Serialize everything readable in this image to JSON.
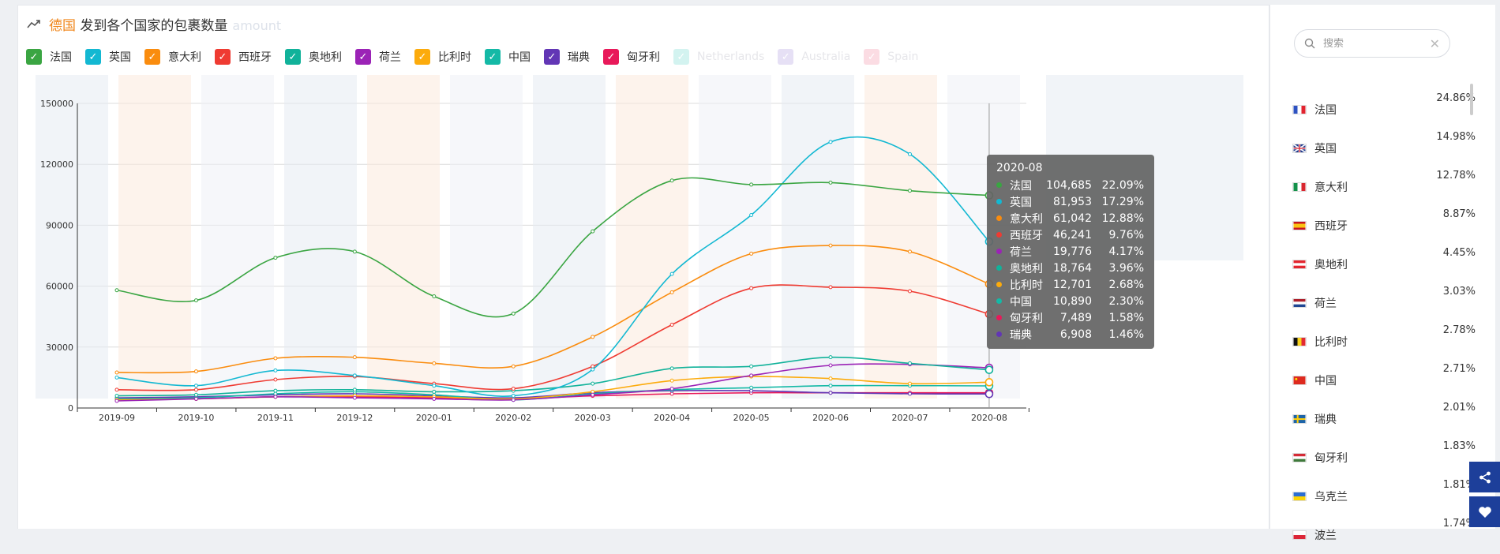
{
  "header": {
    "title_prefix": "德国",
    "title_main": "发到各个国家的包裹数量",
    "title_ghost": "amount"
  },
  "legend": [
    {
      "name": "法国",
      "color": "#3aa542",
      "on": true
    },
    {
      "name": "英国",
      "color": "#13b8d2",
      "on": true
    },
    {
      "name": "意大利",
      "color": "#fa8c0e",
      "on": true
    },
    {
      "name": "西班牙",
      "color": "#ef3b32",
      "on": true
    },
    {
      "name": "奥地利",
      "color": "#11b29a",
      "on": true
    },
    {
      "name": "荷兰",
      "color": "#9b23b6",
      "on": true
    },
    {
      "name": "比利时",
      "color": "#fcab0c",
      "on": true
    },
    {
      "name": "中国",
      "color": "#14b9a6",
      "on": true
    },
    {
      "name": "瑞典",
      "color": "#6236b5",
      "on": true
    },
    {
      "name": "匈牙利",
      "color": "#e8195a",
      "on": true
    },
    {
      "name": "Netherlands",
      "color": "#d3f3f0",
      "on": false
    },
    {
      "name": "Australia",
      "color": "#e6e0f5",
      "on": false
    },
    {
      "name": "Spain",
      "color": "#fbdce3",
      "on": false
    }
  ],
  "tooltip": {
    "date": "2020-08",
    "rows": [
      {
        "name": "法国",
        "value": "104,685",
        "pct": "22.09%",
        "color": "#3aa542"
      },
      {
        "name": "英国",
        "value": "81,953",
        "pct": "17.29%",
        "color": "#13b8d2"
      },
      {
        "name": "意大利",
        "value": "61,042",
        "pct": "12.88%",
        "color": "#fa8c0e"
      },
      {
        "name": "西班牙",
        "value": "46,241",
        "pct": "9.76%",
        "color": "#ef3b32"
      },
      {
        "name": "荷兰",
        "value": "19,776",
        "pct": "4.17%",
        "color": "#9b23b6"
      },
      {
        "name": "奥地利",
        "value": "18,764",
        "pct": "3.96%",
        "color": "#11b29a"
      },
      {
        "name": "比利时",
        "value": "12,701",
        "pct": "2.68%",
        "color": "#fcab0c"
      },
      {
        "name": "中国",
        "value": "10,890",
        "pct": "2.30%",
        "color": "#14b9a6"
      },
      {
        "name": "匈牙利",
        "value": "7,489",
        "pct": "1.58%",
        "color": "#e8195a"
      },
      {
        "name": "瑞典",
        "value": "6,908",
        "pct": "1.46%",
        "color": "#6236b5"
      }
    ]
  },
  "side": {
    "search_placeholder": "搜索",
    "countries": [
      {
        "name": "法国",
        "pct": "24.86%",
        "flag": "fr"
      },
      {
        "name": "英国",
        "pct": "14.98%",
        "flag": "gb"
      },
      {
        "name": "意大利",
        "pct": "12.78%",
        "flag": "it"
      },
      {
        "name": "西班牙",
        "pct": "8.87%",
        "flag": "es"
      },
      {
        "name": "奥地利",
        "pct": "4.45%",
        "flag": "at"
      },
      {
        "name": "荷兰",
        "pct": "3.03%",
        "flag": "nl"
      },
      {
        "name": "比利时",
        "pct": "2.78%",
        "flag": "be"
      },
      {
        "name": "中国",
        "pct": "2.71%",
        "flag": "cn"
      },
      {
        "name": "瑞典",
        "pct": "2.01%",
        "flag": "se"
      },
      {
        "name": "匈牙利",
        "pct": "1.83%",
        "flag": "hu"
      },
      {
        "name": "乌克兰",
        "pct": "1.81%",
        "flag": "ua"
      },
      {
        "name": "波兰",
        "pct": "1.74%",
        "flag": "pl"
      }
    ]
  },
  "chart_data": {
    "type": "line",
    "x": [
      "2019-09",
      "2019-10",
      "2019-11",
      "2019-12",
      "2020-01",
      "2020-02",
      "2020-03",
      "2020-04",
      "2020-05",
      "2020-06",
      "2020-07",
      "2020-08"
    ],
    "ylim": [
      0,
      150000
    ],
    "yticks": [
      0,
      30000,
      60000,
      90000,
      120000,
      150000
    ],
    "grid": true,
    "series": [
      {
        "name": "法国",
        "color": "#3aa542",
        "values": [
          58000,
          53000,
          74000,
          77000,
          55000,
          46500,
          87000,
          112000,
          110000,
          111000,
          107000,
          104685
        ]
      },
      {
        "name": "英国",
        "color": "#13b8d2",
        "values": [
          15000,
          11000,
          18500,
          16000,
          11000,
          6000,
          19000,
          66000,
          95000,
          131000,
          125000,
          81953
        ]
      },
      {
        "name": "意大利",
        "color": "#fa8c0e",
        "values": [
          17500,
          18000,
          24500,
          25000,
          22000,
          20500,
          35000,
          57000,
          76000,
          80000,
          77000,
          61042
        ]
      },
      {
        "name": "西班牙",
        "color": "#ef3b32",
        "values": [
          9000,
          9000,
          14000,
          15500,
          12000,
          9500,
          20500,
          41000,
          59000,
          59500,
          57500,
          46241
        ]
      },
      {
        "name": "奥地利",
        "color": "#11b29a",
        "values": [
          6000,
          6500,
          8500,
          9000,
          8000,
          8500,
          12000,
          19500,
          20500,
          25000,
          22000,
          18764
        ]
      },
      {
        "name": "荷兰",
        "color": "#9b23b6",
        "values": [
          3500,
          4500,
          5500,
          5000,
          4500,
          4000,
          6500,
          9500,
          16000,
          21000,
          21500,
          19776
        ]
      },
      {
        "name": "比利时",
        "color": "#fcab0c",
        "values": [
          4000,
          4500,
          5500,
          6000,
          5500,
          4500,
          8000,
          13500,
          15500,
          14500,
          12000,
          12701
        ]
      },
      {
        "name": "中国",
        "color": "#14b9a6",
        "values": [
          4500,
          5000,
          7000,
          8000,
          6500,
          4000,
          7000,
          9000,
          10000,
          11000,
          11000,
          10890
        ]
      },
      {
        "name": "瑞典",
        "color": "#6236b5",
        "values": [
          5000,
          5500,
          6500,
          7000,
          6000,
          5000,
          7500,
          8500,
          8500,
          7500,
          7000,
          6908
        ]
      },
      {
        "name": "匈牙利",
        "color": "#e8195a",
        "values": [
          4500,
          4500,
          5500,
          5500,
          5000,
          4500,
          6000,
          7000,
          7500,
          7500,
          7500,
          7489
        ]
      }
    ]
  }
}
